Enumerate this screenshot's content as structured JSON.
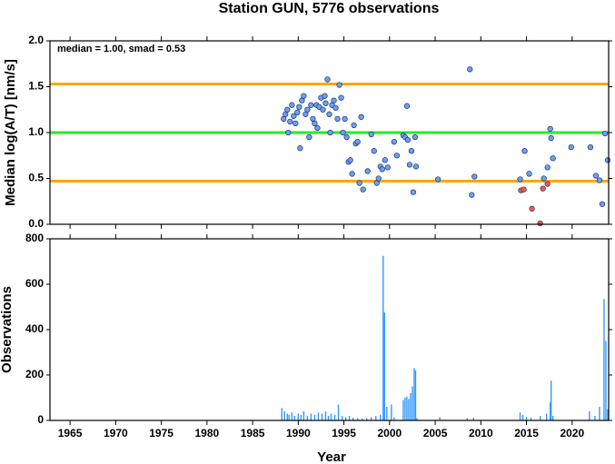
{
  "chart_data": [
    {
      "type": "scatter",
      "title": "Station GUN, 5776 observations",
      "y_label": "Median log(A/T) [nm/s]",
      "annotation": "median = 1.00, smad = 0.53",
      "xlim": [
        1962.8,
        2024
      ],
      "xticks": [
        1965,
        1970,
        1975,
        1980,
        1985,
        1990,
        1995,
        2000,
        2005,
        2010,
        2015,
        2020
      ],
      "ylim": [
        0,
        2
      ],
      "yticks": [
        {
          "value": 0,
          "label": "0.0"
        },
        {
          "value": 0.5,
          "label": "0.5"
        },
        {
          "value": 1,
          "label": "1.0"
        },
        {
          "value": 1.5,
          "label": "1.5"
        },
        {
          "value": 2,
          "label": "2.0"
        }
      ],
      "reference_lines": [
        {
          "value": 1.53,
          "color": "#ffa500"
        },
        {
          "value": 1.0,
          "color": "#22ee22"
        },
        {
          "value": 0.47,
          "color": "#ffa500"
        }
      ],
      "series": [
        {
          "color": "#6e9ff0",
          "x": [
            1988.4,
            1988.6,
            1988.8,
            1988.9,
            1989.1,
            1989.3,
            1989.5,
            1989.7,
            1989.9,
            1990.1,
            1990.2,
            1990.4,
            1990.6,
            1990.8,
            1991.0,
            1991.2,
            1991.4,
            1991.6,
            1991.8,
            1992.0,
            1992.1,
            1992.3,
            1992.5,
            1992.7,
            1992.9,
            1993.0,
            1993.2,
            1993.4,
            1993.5,
            1993.7,
            1993.9,
            1994.1,
            1994.3,
            1994.5,
            1994.7,
            1994.9,
            1995.1,
            1995.3,
            1995.5,
            1995.7,
            1995.9,
            1996.1,
            1996.3,
            1996.5,
            1996.7,
            1996.9,
            1997.1,
            1997.6,
            1998.0,
            1998.3,
            1998.6,
            1998.8,
            1999.0,
            1999.2,
            1999.5,
            1999.8,
            2000.5,
            2000.8,
            2001.5,
            2001.7,
            2001.9,
            2002.0,
            2002.2,
            2002.4,
            2002.6,
            2002.8,
            2002.9,
            2005.3,
            2008.8,
            2009.0,
            2009.3,
            2014.3,
            2014.8,
            2015.3,
            2016.9,
            2017.3,
            2017.6,
            2017.7,
            2017.9,
            2019.9,
            2022.0,
            2022.6,
            2023.0,
            2023.3,
            2023.6,
            2023.9
          ],
          "values": [
            1.15,
            1.2,
            1.25,
            1.0,
            1.12,
            1.3,
            1.18,
            1.1,
            1.22,
            1.28,
            0.83,
            1.35,
            1.4,
            1.2,
            1.25,
            0.95,
            1.3,
            1.15,
            1.1,
            1.3,
            1.05,
            1.28,
            1.38,
            1.25,
            1.4,
            1.32,
            1.58,
            1.2,
            1.0,
            1.3,
            1.35,
            1.27,
            1.15,
            1.52,
            1.38,
            1.0,
            1.15,
            0.95,
            0.68,
            0.7,
            0.55,
            1.08,
            0.88,
            0.9,
            0.45,
            1.17,
            0.38,
            0.58,
            0.98,
            0.8,
            0.45,
            0.5,
            0.63,
            0.6,
            0.7,
            0.62,
            0.9,
            0.75,
            0.97,
            0.95,
            1.29,
            0.92,
            0.65,
            0.8,
            0.35,
            0.95,
            0.63,
            0.49,
            1.69,
            0.32,
            0.52,
            0.49,
            0.8,
            0.55,
            0.5,
            0.62,
            1.04,
            0.94,
            0.72,
            0.84,
            0.84,
            0.53,
            0.48,
            0.22,
            0.99,
            0.7
          ]
        },
        {
          "color": "#ff5544",
          "x": [
            2014.4,
            2014.7,
            2015.6,
            2016.5,
            2016.8,
            2017.3
          ],
          "values": [
            0.37,
            0.38,
            0.17,
            0.01,
            0.39,
            0.44
          ]
        }
      ]
    },
    {
      "type": "bar",
      "y_label": "Observations",
      "x_label": "Year",
      "color": "#3399ff",
      "xlim": [
        1962.8,
        2024
      ],
      "xticks": [
        1965,
        1970,
        1975,
        1980,
        1985,
        1990,
        1995,
        2000,
        2005,
        2010,
        2015,
        2020
      ],
      "ylim": [
        0,
        800
      ],
      "yticks": [
        0,
        200,
        400,
        600,
        800
      ],
      "x": [
        1988.2,
        1988.5,
        1988.8,
        1989.0,
        1989.3,
        1989.6,
        1990.0,
        1990.3,
        1990.6,
        1991.0,
        1991.4,
        1991.8,
        1992.2,
        1992.6,
        1993.0,
        1993.3,
        1993.6,
        1994.0,
        1994.4,
        1994.8,
        1995.2,
        1995.6,
        1996.0,
        1996.5,
        1997.0,
        1997.5,
        1998.0,
        1998.5,
        1999.0,
        1999.3,
        1999.45,
        1999.7,
        2000.2,
        2000.5,
        2001.5,
        2001.7,
        2001.9,
        2002.1,
        2002.3,
        2002.5,
        2002.7,
        2002.85,
        2003.0,
        2005.5,
        2008.5,
        2009.2,
        2014.3,
        2014.6,
        2015.0,
        2015.5,
        2016.5,
        2017.2,
        2017.6,
        2017.7,
        2017.9,
        2021.9,
        2022.5,
        2023.0,
        2023.5,
        2023.7,
        2023.9
      ],
      "values": [
        55,
        40,
        30,
        25,
        35,
        20,
        30,
        25,
        40,
        20,
        30,
        25,
        35,
        30,
        40,
        20,
        30,
        25,
        70,
        20,
        15,
        20,
        12,
        10,
        8,
        10,
        15,
        20,
        25,
        725,
        475,
        60,
        70,
        15,
        90,
        100,
        105,
        95,
        120,
        150,
        230,
        220,
        10,
        15,
        10,
        12,
        35,
        25,
        15,
        12,
        20,
        30,
        80,
        175,
        20,
        40,
        20,
        60,
        535,
        350,
        50
      ]
    }
  ]
}
